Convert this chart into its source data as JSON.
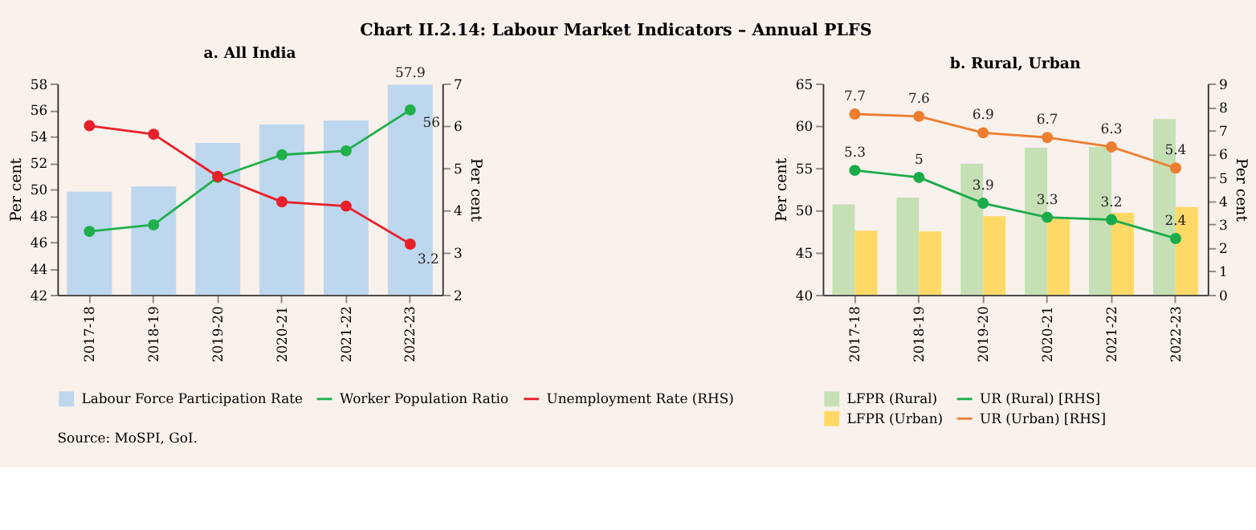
{
  "chart_data": [
    {
      "type": "bar",
      "title": "a. All India",
      "annotations": [
        "Chart II.2.14: Labour Market Indicators – Annual PLFS",
        "Source: MoSPI, GoI."
      ],
      "categories": [
        "2017-18",
        "2018-19",
        "2019-20",
        "2020-21",
        "2021-22",
        "2022-23"
      ],
      "series": [
        {
          "name": "Labour Force Participation Rate",
          "type": "bar",
          "color": "#bdd7ee",
          "values": [
            49.8,
            50.2,
            53.5,
            54.9,
            55.2,
            57.9
          ],
          "value_labels": [
            null,
            null,
            null,
            null,
            null,
            "57.9"
          ]
        },
        {
          "name": "Worker Population Ratio",
          "type": "line",
          "color": "#1fb04b",
          "values": [
            46.8,
            47.3,
            50.9,
            52.6,
            52.9,
            56.0
          ],
          "value_labels": [
            null,
            null,
            null,
            null,
            null,
            "56"
          ]
        },
        {
          "name": "Unemployment Rate (RHS)",
          "type": "line",
          "axis": "y2",
          "color": "#e8202a",
          "values": [
            6.0,
            5.8,
            4.8,
            4.2,
            4.1,
            3.2
          ],
          "value_labels": [
            null,
            null,
            null,
            null,
            null,
            "3.2"
          ]
        }
      ],
      "ylim": [
        42,
        58
      ],
      "yticks": [
        42,
        44,
        46,
        48,
        50,
        52,
        54,
        56,
        58
      ],
      "y2lim": [
        2,
        7
      ],
      "y2ticks": [
        2,
        3,
        4,
        5,
        6,
        7
      ],
      "ylabel": "Per cent",
      "y2label": "Per cent",
      "marker": "circle",
      "legend": "bottom",
      "grid": false
    },
    {
      "type": "bar",
      "title": "b. Rural, Urban",
      "categories": [
        "2017-18",
        "2018-19",
        "2019-20",
        "2020-21",
        "2021-22",
        "2022-23"
      ],
      "series": [
        {
          "name": "LFPR (Rural)",
          "type": "bar",
          "color": "#c5e0b4",
          "values": [
            50.7,
            51.5,
            55.5,
            57.4,
            57.5,
            60.8
          ]
        },
        {
          "name": "LFPR (Urban)",
          "type": "bar",
          "color": "#ffd966",
          "values": [
            47.6,
            47.5,
            49.3,
            49.1,
            49.7,
            50.4
          ]
        },
        {
          "name": "UR (Rural) [RHS]",
          "type": "line",
          "axis": "y2",
          "color": "#1aab4b",
          "values": [
            5.3,
            5.0,
            3.9,
            3.3,
            3.2,
            2.4
          ],
          "value_labels": [
            "5.3",
            "5",
            "3.9",
            "3.3",
            "3.2",
            "2.4"
          ]
        },
        {
          "name": "UR (Urban) [RHS]",
          "type": "line",
          "axis": "y2",
          "color": "#ed7d31",
          "values": [
            7.7,
            7.6,
            6.9,
            6.7,
            6.3,
            5.4
          ],
          "value_labels": [
            "7.7",
            "7.6",
            "6.9",
            "6.7",
            "6.3",
            "5.4"
          ]
        }
      ],
      "ylim": [
        40,
        65
      ],
      "yticks": [
        40,
        45,
        50,
        55,
        60,
        65
      ],
      "y2lim": [
        0,
        9
      ],
      "y2ticks": [
        0,
        1,
        2,
        3,
        4,
        5,
        6,
        7,
        8,
        9
      ],
      "ylabel": "Per cent",
      "y2label": "Per cent",
      "marker": "circle",
      "legend": "bottom",
      "grid": false
    }
  ]
}
